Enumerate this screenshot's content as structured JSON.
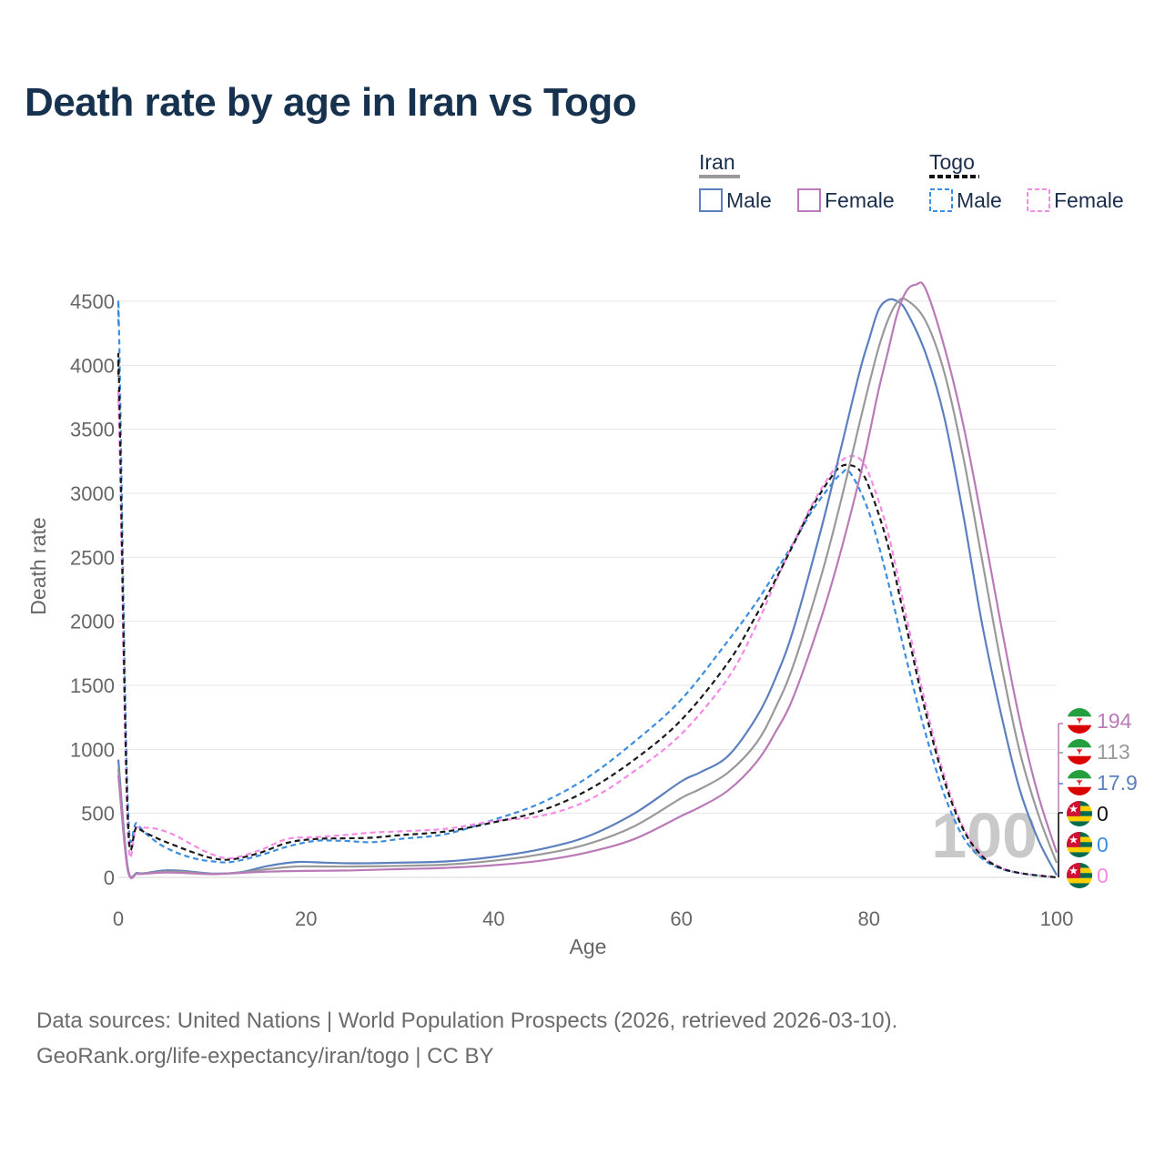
{
  "chart_data": {
    "type": "line",
    "title": "Death rate by age in Iran vs Togo",
    "xlabel": "Age",
    "ylabel": "Death rate",
    "xlim": [
      0,
      100
    ],
    "ylim": [
      0,
      4650
    ],
    "xticks": [
      0,
      20,
      40,
      60,
      80,
      100
    ],
    "yticks": [
      0,
      500,
      1000,
      1500,
      2000,
      2500,
      3000,
      3500,
      4000,
      4500
    ],
    "grid": true,
    "legend_position": "top-right",
    "legend": {
      "groups": [
        {
          "name": "Iran",
          "entries": [
            "Male",
            "Female"
          ]
        },
        {
          "name": "Togo",
          "entries": [
            "Male",
            "Female"
          ]
        }
      ]
    },
    "annotation": "100",
    "series": [
      {
        "name": "Iran Male",
        "country": "Iran",
        "sex": "Male",
        "color": "#5b7fbf",
        "dash": false,
        "end_label": "17.9",
        "x": [
          0,
          1,
          2,
          3,
          5,
          7,
          10,
          13,
          16,
          19,
          22,
          25,
          30,
          35,
          40,
          45,
          50,
          55,
          60,
          62,
          65,
          68,
          70,
          72,
          75,
          77,
          79,
          80,
          81,
          82,
          83,
          84,
          86,
          88,
          90,
          92,
          94,
          96,
          98,
          100
        ],
        "y": [
          920,
          80,
          35,
          35,
          55,
          50,
          30,
          40,
          90,
          120,
          115,
          110,
          115,
          125,
          160,
          220,
          320,
          500,
          750,
          820,
          950,
          1250,
          1550,
          1950,
          2750,
          3350,
          3950,
          4200,
          4430,
          4510,
          4500,
          4420,
          4100,
          3600,
          2850,
          2000,
          1300,
          700,
          300,
          18
        ]
      },
      {
        "name": "Iran Both",
        "country": "Iran",
        "sex": "Both",
        "color": "#999999",
        "dash": false,
        "end_label": "113",
        "x": [
          0,
          1,
          2,
          3,
          5,
          7,
          10,
          13,
          16,
          19,
          22,
          25,
          30,
          35,
          40,
          45,
          50,
          55,
          60,
          62,
          65,
          68,
          70,
          72,
          75,
          77,
          79,
          80,
          81,
          82,
          83,
          84,
          86,
          88,
          90,
          92,
          94,
          96,
          98,
          100
        ],
        "y": [
          850,
          70,
          30,
          32,
          45,
          42,
          28,
          38,
          65,
          85,
          85,
          85,
          90,
          100,
          130,
          180,
          260,
          400,
          620,
          690,
          820,
          1050,
          1320,
          1670,
          2380,
          2940,
          3550,
          3850,
          4130,
          4350,
          4490,
          4510,
          4350,
          3950,
          3300,
          2500,
          1700,
          1000,
          500,
          113
        ]
      },
      {
        "name": "Iran Female",
        "country": "Iran",
        "sex": "Female",
        "color": "#b97ab7",
        "dash": false,
        "end_label": "194",
        "x": [
          0,
          1,
          2,
          3,
          5,
          7,
          10,
          13,
          16,
          19,
          22,
          25,
          30,
          35,
          40,
          45,
          50,
          55,
          60,
          62,
          65,
          68,
          70,
          72,
          75,
          77,
          79,
          80,
          81,
          82,
          83,
          84,
          85,
          86,
          88,
          90,
          92,
          94,
          96,
          98,
          100
        ],
        "y": [
          800,
          60,
          28,
          30,
          38,
          35,
          25,
          35,
          45,
          50,
          52,
          55,
          65,
          75,
          95,
          130,
          195,
          300,
          480,
          550,
          680,
          900,
          1130,
          1420,
          2050,
          2550,
          3120,
          3450,
          3800,
          4100,
          4400,
          4580,
          4630,
          4600,
          4150,
          3550,
          2800,
          2000,
          1250,
          650,
          194
        ]
      },
      {
        "name": "Togo Male",
        "country": "Togo",
        "sex": "Male",
        "color": "#3a8de0",
        "dash": true,
        "end_label": "0",
        "x": [
          0,
          0.1,
          1,
          2,
          4,
          6,
          8,
          10,
          12,
          15,
          18,
          21,
          24,
          27,
          30,
          35,
          40,
          45,
          50,
          55,
          60,
          65,
          68,
          70,
          72,
          74,
          76,
          77,
          78,
          80,
          82,
          84,
          86,
          88,
          90,
          92,
          94,
          96,
          98,
          100
        ],
        "y": [
          4320,
          4200,
          600,
          420,
          280,
          200,
          150,
          125,
          120,
          170,
          240,
          285,
          285,
          275,
          300,
          340,
          450,
          580,
          780,
          1060,
          1390,
          1850,
          2150,
          2380,
          2620,
          2870,
          3070,
          3150,
          3160,
          2850,
          2320,
          1700,
          1130,
          650,
          320,
          150,
          70,
          35,
          15,
          0
        ]
      },
      {
        "name": "Togo Both",
        "country": "Togo",
        "sex": "Both",
        "color": "#1a1a1a",
        "dash": true,
        "end_label": "0",
        "x": [
          0,
          0.1,
          1,
          2,
          4,
          6,
          8,
          10,
          12,
          15,
          18,
          21,
          24,
          27,
          30,
          35,
          40,
          45,
          50,
          55,
          60,
          65,
          68,
          70,
          72,
          74,
          76,
          77,
          78,
          79,
          80,
          82,
          84,
          86,
          88,
          90,
          92,
          94,
          96,
          98,
          100
        ],
        "y": [
          3920,
          3800,
          490,
          390,
          310,
          250,
          195,
          150,
          140,
          190,
          270,
          300,
          305,
          310,
          330,
          360,
          430,
          520,
          680,
          920,
          1230,
          1680,
          2050,
          2320,
          2610,
          2900,
          3130,
          3210,
          3220,
          3180,
          3050,
          2600,
          1950,
          1300,
          760,
          380,
          170,
          75,
          35,
          15,
          0
        ]
      },
      {
        "name": "Togo Female",
        "country": "Togo",
        "sex": "Female",
        "color": "#f58ae6",
        "dash": true,
        "end_label": "0",
        "x": [
          0,
          0.1,
          1,
          2,
          4,
          6,
          8,
          10,
          12,
          15,
          18,
          21,
          24,
          27,
          30,
          35,
          40,
          45,
          50,
          55,
          60,
          65,
          68,
          70,
          72,
          74,
          76,
          77,
          78,
          79,
          80,
          82,
          84,
          86,
          88,
          90,
          92,
          94,
          96,
          98,
          100
        ],
        "y": [
          3700,
          3500,
          390,
          390,
          380,
          330,
          250,
          180,
          150,
          210,
          300,
          315,
          330,
          350,
          360,
          380,
          440,
          480,
          600,
          830,
          1120,
          1560,
          1970,
          2300,
          2620,
          2920,
          3160,
          3250,
          3290,
          3270,
          3150,
          2700,
          2030,
          1360,
          800,
          400,
          180,
          80,
          35,
          15,
          0
        ]
      }
    ]
  },
  "footer": {
    "source_line": "Data sources: United Nations | World Population Prospects (2026, retrieved 2026-03-10).",
    "url_line": "GeoRank.org/life-expectancy/iran/togo | CC BY"
  },
  "icons": {
    "iran_flag": "iran-flag-icon",
    "togo_flag": "togo-flag-icon"
  }
}
